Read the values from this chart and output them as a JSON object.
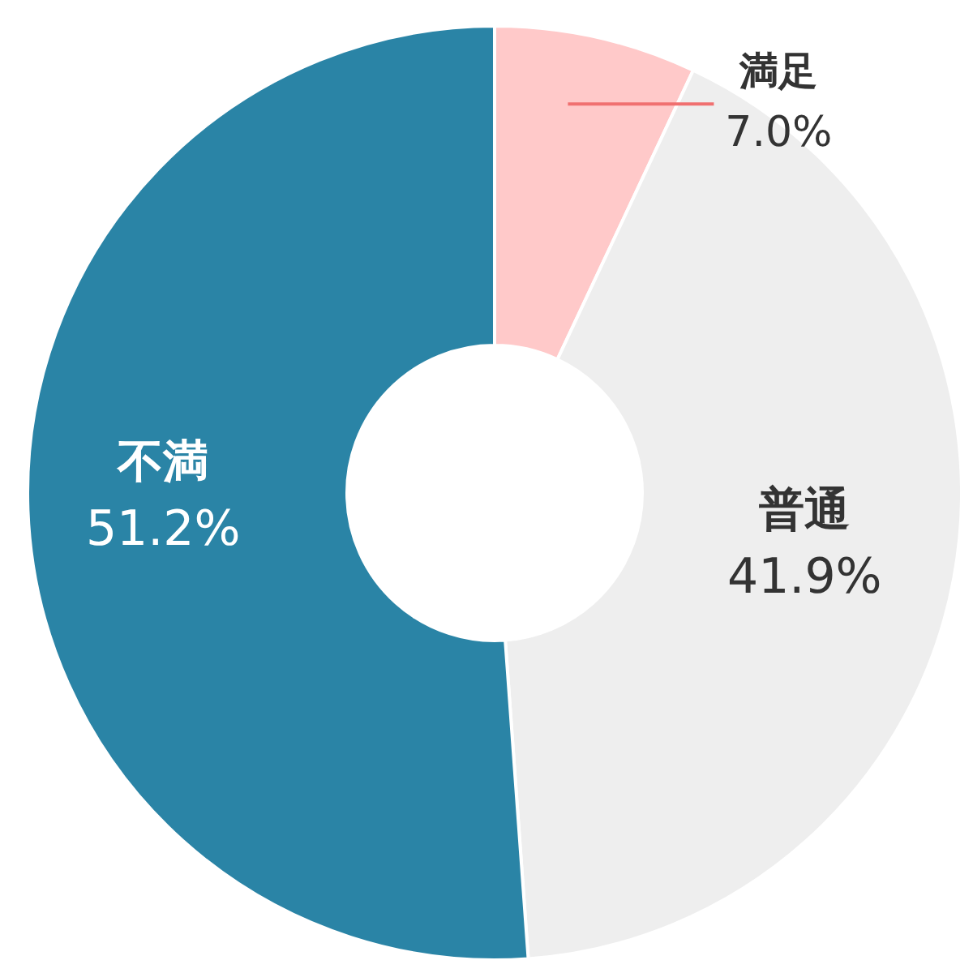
{
  "chart_data": {
    "type": "donut",
    "categories": [
      "満足",
      "普通",
      "不満"
    ],
    "values": [
      7.0,
      41.9,
      51.2
    ],
    "colors": [
      "#ffc9c9",
      "#eeeeee",
      "#2a84a6"
    ],
    "value_labels": [
      "7.0%",
      "41.9%",
      "51.2%"
    ]
  }
}
